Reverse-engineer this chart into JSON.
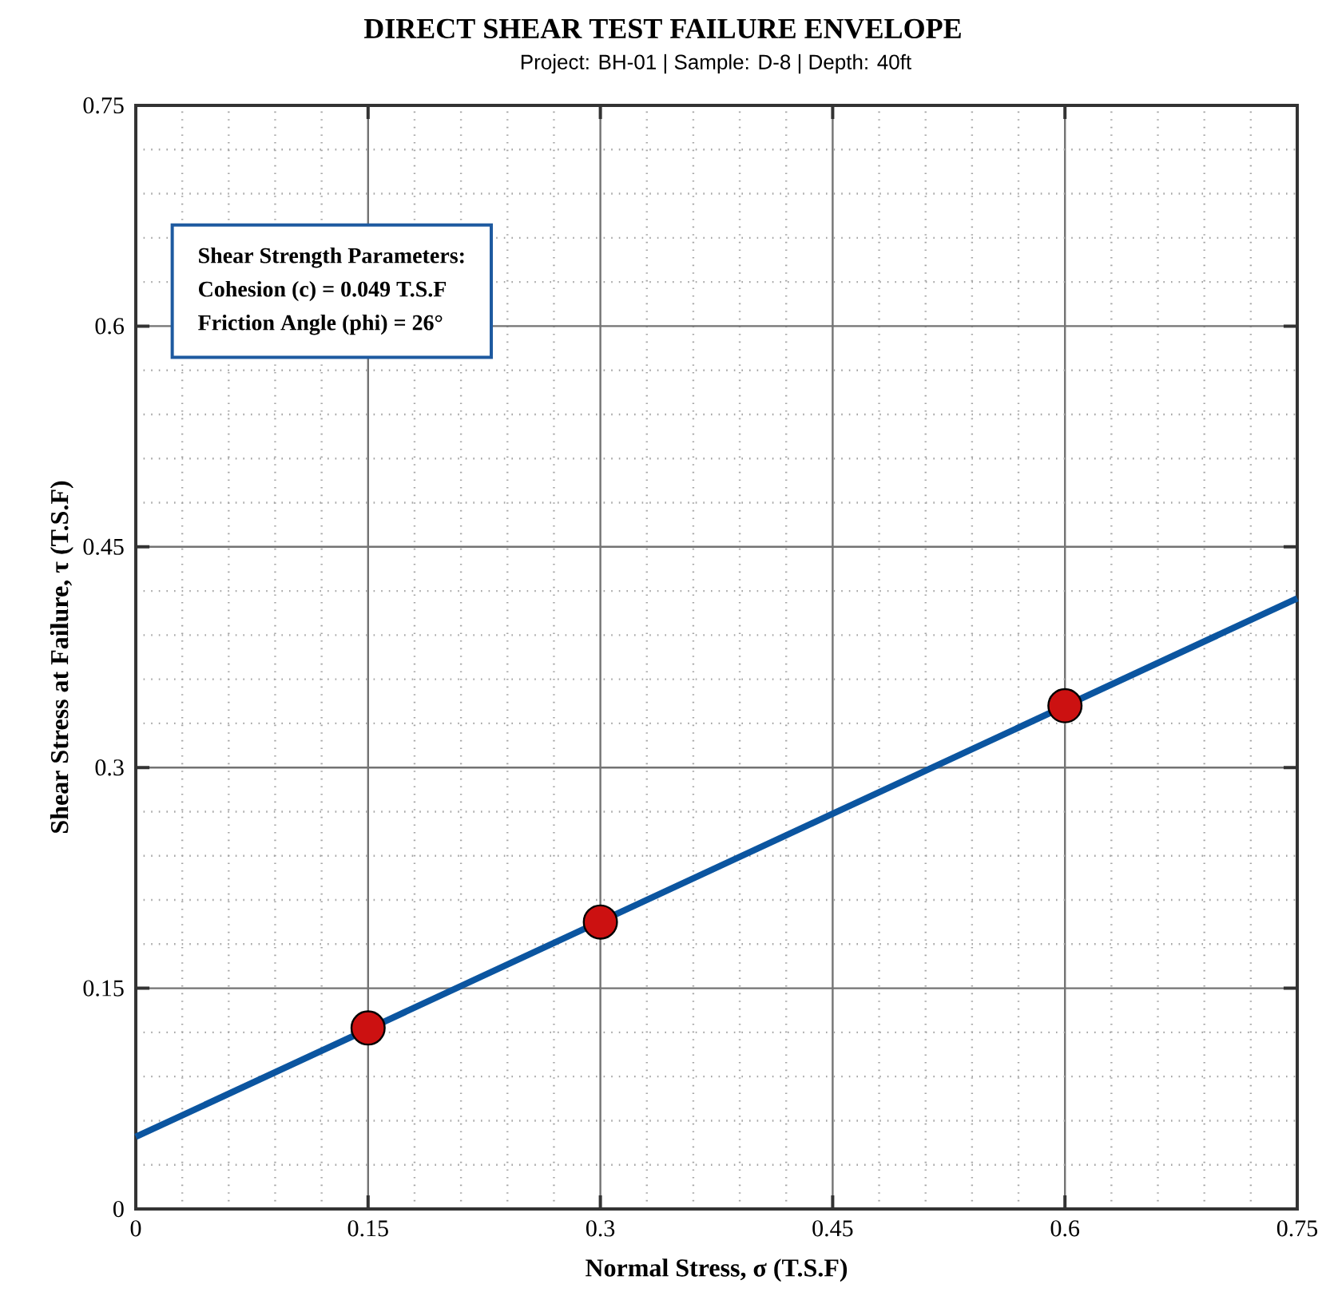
{
  "chart_data": {
    "type": "scatter",
    "title": "DIRECT SHEAR TEST FAILURE ENVELOPE",
    "subtitle": "Project: BH-01 | Sample: D-8 | Depth: 40ft",
    "xlabel": "Normal Stress, σ (T.S.F)",
    "ylabel": "Shear Stress at Failure, τ (T.S.F)",
    "xlim": [
      0,
      0.75
    ],
    "ylim": [
      0,
      0.75
    ],
    "xticks": [
      0,
      0.15,
      0.3,
      0.45,
      0.6,
      0.75
    ],
    "yticks": [
      0,
      0.15,
      0.3,
      0.45,
      0.6,
      0.75
    ],
    "grid": true,
    "marker": "circle",
    "annotations": [
      "Shear Strength Parameters:",
      "Cohesion (c) = 0.049 T.S.F",
      "Friction Angle (phi) = 26°"
    ],
    "series": [
      {
        "type": "line",
        "x": [
          0,
          0.75
        ],
        "values": [
          0.049,
          0.415
        ],
        "color": "#0b55a0",
        "marker": "none"
      },
      {
        "x": [
          0.15,
          0.3,
          0.6
        ],
        "values": [
          0.123,
          0.195,
          0.342
        ],
        "color": "#cc1111"
      }
    ]
  }
}
